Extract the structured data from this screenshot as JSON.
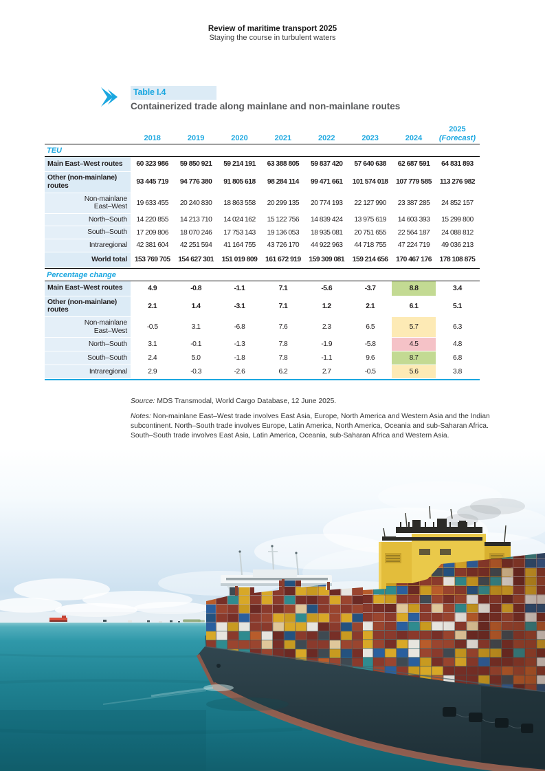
{
  "page_header": {
    "title": "Review of maritime transport 2025",
    "subtitle": "Staying the course in turbulent waters"
  },
  "table": {
    "label": "Table I.4",
    "title": "Containerized trade along mainlane and non-mainlane routes",
    "accent_color": "#1ba7e0",
    "years": [
      "2018",
      "2019",
      "2020",
      "2021",
      "2022",
      "2023",
      "2024"
    ],
    "forecast_header": {
      "line1": "2025",
      "line2": "(Forecast)"
    },
    "highlight_colors": {
      "green": "#c3da93",
      "yellow": "#fdeab5",
      "pink": "#f5c2c7"
    },
    "sections": [
      {
        "name": "TEU",
        "rows": [
          {
            "style": "main",
            "label_lines": [
              "Main East–West routes"
            ],
            "values": [
              "60 323 986",
              "59 850 921",
              "59 214 191",
              "63 388 805",
              "59 837 420",
              "57 640 638",
              "62 687 591",
              "64 831 893"
            ],
            "highlight": null
          },
          {
            "style": "main",
            "label_lines": [
              "Other (non-mainlane)",
              "routes"
            ],
            "values": [
              "93 445 719",
              "94 776 380",
              "91 805 618",
              "98 284 114",
              "99 471 661",
              "101 574 018",
              "107 779 585",
              "113 276 982"
            ],
            "highlight": null
          },
          {
            "style": "sub",
            "label_lines": [
              "Non-mainlane",
              "East–West"
            ],
            "values": [
              "19 633 455",
              "20 240 830",
              "18 863 558",
              "20 299 135",
              "20 774 193",
              "22 127 990",
              "23 387 285",
              "24 852 157"
            ],
            "highlight": null
          },
          {
            "style": "sub",
            "label_lines": [
              "North–South"
            ],
            "values": [
              "14 220 855",
              "14 213 710",
              "14 024 162",
              "15 122 756",
              "14 839 424",
              "13 975 619",
              "14 603 393",
              "15 299 800"
            ],
            "highlight": null
          },
          {
            "style": "sub",
            "label_lines": [
              "South–South"
            ],
            "values": [
              "17 209 806",
              "18 070 246",
              "17 753 143",
              "19 136 053",
              "18 935 081",
              "20 751 655",
              "22 564 187",
              "24 088 812"
            ],
            "highlight": null
          },
          {
            "style": "sub",
            "label_lines": [
              "Intraregional"
            ],
            "values": [
              "42 381 604",
              "42 251 594",
              "41 164 755",
              "43 726 170",
              "44 922 963",
              "44 718 755",
              "47 224 719",
              "49 036 213"
            ],
            "highlight": null
          },
          {
            "style": "total",
            "label_lines": [
              "World total"
            ],
            "values": [
              "153 769 705",
              "154 627 301",
              "151 019 809",
              "161 672 919",
              "159 309 081",
              "159 214 656",
              "170 467 176",
              "178 108 875"
            ],
            "highlight": null
          }
        ]
      },
      {
        "name": "Percentage change",
        "rows": [
          {
            "style": "main",
            "label_lines": [
              "Main East–West routes"
            ],
            "values": [
              "4.9",
              "-0.8",
              "-1.1",
              "7.1",
              "-5.6",
              "-3.7",
              "8.8",
              "3.4"
            ],
            "highlight": {
              "col": 6,
              "color": "green"
            }
          },
          {
            "style": "main",
            "label_lines": [
              "Other (non-mainlane)",
              "routes"
            ],
            "values": [
              "2.1",
              "1.4",
              "-3.1",
              "7.1",
              "1.2",
              "2.1",
              "6.1",
              "5.1"
            ],
            "highlight": null
          },
          {
            "style": "sub",
            "label_lines": [
              "Non-mainlane",
              "East–West"
            ],
            "values": [
              "-0.5",
              "3.1",
              "-6.8",
              "7.6",
              "2.3",
              "6.5",
              "5.7",
              "6.3"
            ],
            "highlight": {
              "col": 6,
              "color": "yellow"
            }
          },
          {
            "style": "sub",
            "label_lines": [
              "North–South"
            ],
            "values": [
              "3.1",
              "-0.1",
              "-1.3",
              "7.8",
              "-1.9",
              "-5.8",
              "4.5",
              "4.8"
            ],
            "highlight": {
              "col": 6,
              "color": "pink"
            }
          },
          {
            "style": "sub",
            "label_lines": [
              "South–South"
            ],
            "values": [
              "2.4",
              "5.0",
              "-1.8",
              "7.8",
              "-1.1",
              "9.6",
              "8.7",
              "6.8"
            ],
            "highlight": {
              "col": 6,
              "color": "green"
            }
          },
          {
            "style": "sub",
            "label_lines": [
              "Intraregional"
            ],
            "values": [
              "2.9",
              "-0.3",
              "-2.6",
              "6.2",
              "2.7",
              "-0.5",
              "5.6",
              "3.8"
            ],
            "highlight": {
              "col": 6,
              "color": "yellow"
            }
          }
        ]
      }
    ]
  },
  "source": {
    "label": "Source:",
    "text": " MDS Transmodal, World Cargo Database, 12 June 2025."
  },
  "notes": {
    "label": "Notes:",
    "text": " Non-mainlane East–West trade involves East Asia, Europe, North America and Western Asia and the Indian subcontinent. North–South trade involves Europe, Latin America, North America, Oceania and sub-Saharan Africa. South–South trade involves East Asia, Latin America, Oceania, sub-Saharan Africa and Western Asia."
  },
  "photo": {
    "description": "Large container ship loaded with multicoloured containers sailing on teal sea under a cloudy sky"
  }
}
